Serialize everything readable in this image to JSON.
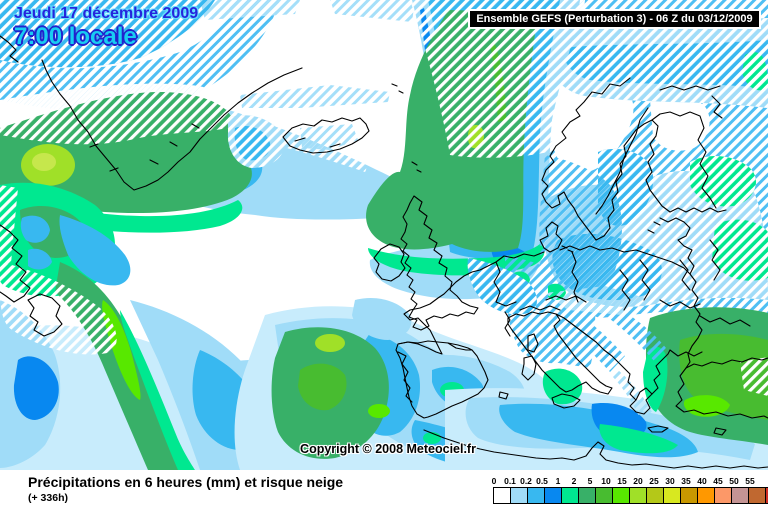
{
  "header": {
    "date_line1": "Jeudi 17 décembre 2009",
    "date_line2": "7:00 locale",
    "model_label": "Ensemble GEFS (Perturbation 3)  -  06 Z du 03/12/2009"
  },
  "map": {
    "copyright": "Copyright © 2008 Meteociel.fr"
  },
  "footer": {
    "title": "Précipitations en 6 heures (mm) et risque neige",
    "run_offset": "(+ 336h)"
  },
  "legend": {
    "unit": "mm",
    "items": [
      {
        "label": "0",
        "color": "#FFFFFF"
      },
      {
        "label": "0.1",
        "color": "#A0DCF8"
      },
      {
        "label": "0.2",
        "color": "#38B8F0"
      },
      {
        "label": "0.5",
        "color": "#0888F0"
      },
      {
        "label": "1",
        "color": "#00E890"
      },
      {
        "label": "2",
        "color": "#38B068"
      },
      {
        "label": "5",
        "color": "#48BC30"
      },
      {
        "label": "10",
        "color": "#58E800"
      },
      {
        "label": "15",
        "color": "#A0E028"
      },
      {
        "label": "20",
        "color": "#B4C818"
      },
      {
        "label": "25",
        "color": "#D8E820"
      },
      {
        "label": "30",
        "color": "#C89800"
      },
      {
        "label": "35",
        "color": "#FF9800"
      },
      {
        "label": "40",
        "color": "#FC9868"
      },
      {
        "label": "45",
        "color": "#C49494"
      },
      {
        "label": "50",
        "color": "#C06830"
      },
      {
        "label": "55",
        "color": "#CC2C24"
      }
    ]
  }
}
